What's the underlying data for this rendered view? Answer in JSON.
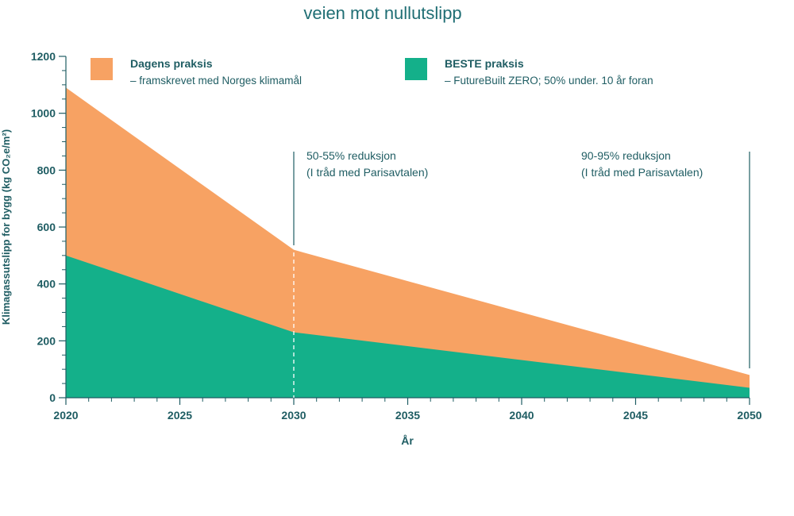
{
  "chart_data": {
    "type": "area",
    "title": "veien mot nullutslipp",
    "xlabel": "År",
    "ylabel": "Klimagassutslipp for bygg (kg CO₂e/m²)",
    "xlim": [
      2020,
      2050
    ],
    "ylim": [
      0,
      1200
    ],
    "x_ticks": [
      2020,
      2025,
      2030,
      2035,
      2040,
      2045,
      2050
    ],
    "y_ticks": [
      0,
      200,
      400,
      600,
      800,
      1000,
      1200
    ],
    "x_tick_labels": [
      "2020",
      "2025",
      "2030",
      "2035",
      "2040",
      "2045",
      "2050"
    ],
    "y_tick_labels": [
      "0",
      "200",
      "400",
      "600",
      "800",
      "1000",
      "1200"
    ],
    "grid": false,
    "legend_position": "top",
    "series": [
      {
        "name": "Dagens praksis",
        "description": "– framskrevet med Norges klimamål",
        "color": "#f7a263",
        "x": [
          2020,
          2030,
          2050
        ],
        "y": [
          1090,
          520,
          80
        ]
      },
      {
        "name": "BESTE praksis",
        "description": "– FutureBuilt ZERO; 50% under. 10 år foran",
        "color": "#14b08a",
        "x": [
          2020,
          2030,
          2050
        ],
        "y": [
          500,
          230,
          35
        ]
      }
    ],
    "annotations": [
      {
        "x": 2030,
        "line1": "50-55% reduksjon",
        "line2": "(I tråd med Parisavtalen)"
      },
      {
        "x": 2050,
        "line1": "90-95% reduksjon",
        "line2": "(I tråd med Parisavtalen)"
      }
    ],
    "colors": {
      "axis": "#1f5d63",
      "text": "#1f5d63",
      "title": "#1f6e74"
    }
  }
}
